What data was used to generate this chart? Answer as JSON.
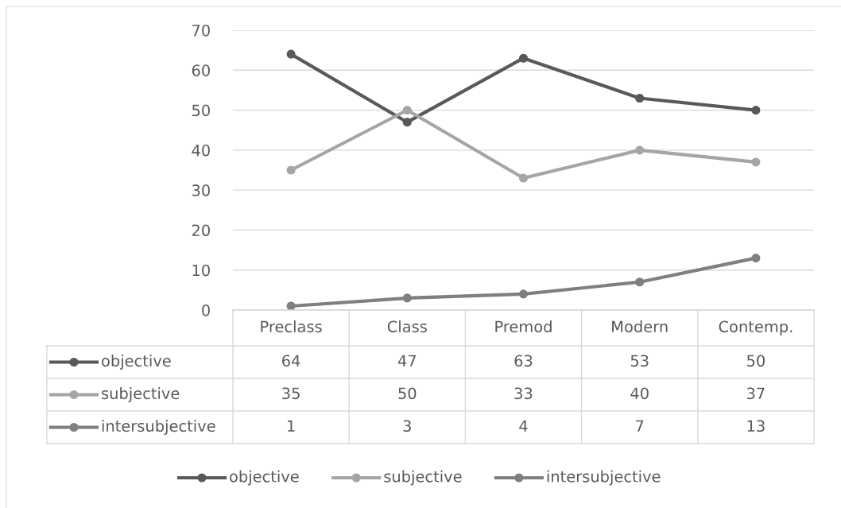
{
  "chart_data": {
    "type": "line",
    "categories": [
      "Preclass",
      "Class",
      "Premod",
      "Modern",
      "Contemp."
    ],
    "series": [
      {
        "name": "objective",
        "color": "#595959",
        "values": [
          64,
          47,
          63,
          53,
          50
        ]
      },
      {
        "name": "subjective",
        "color": "#a5a5a5",
        "values": [
          35,
          50,
          33,
          40,
          37
        ]
      },
      {
        "name": "intersubjective",
        "color": "#7f7f7f",
        "values": [
          1,
          3,
          4,
          7,
          13
        ]
      }
    ],
    "ylim": [
      0,
      70
    ],
    "yticks": [
      0,
      10,
      20,
      30,
      40,
      50,
      60,
      70
    ],
    "grid": "y",
    "legend": "bottom",
    "marker": "circle",
    "line_style": "solid",
    "data_labels": true
  }
}
